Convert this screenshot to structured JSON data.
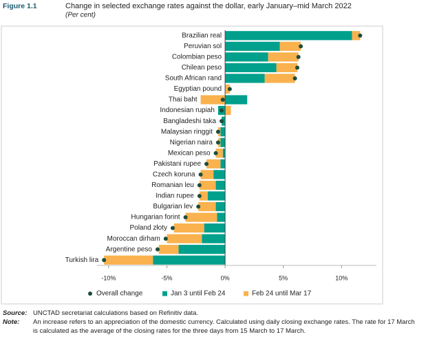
{
  "figure_label": "Figure 1.1",
  "chart_data": {
    "type": "stacked_barh_dot",
    "title": "Change in selected exchange rates against the dollar, early January–mid March 2022",
    "subtitle": "(Per cent)",
    "categories": [
      "Brazilian real",
      "Peruvian sol",
      "Colombian peso",
      "Chilean peso",
      "South African rand",
      "Egyptian pound",
      "Thai baht",
      "Indonesian rupiah",
      "Bangladeshi taka",
      "Malaysian ringgit",
      "Nigerian naira",
      "Mexican peso",
      "Pakistani rupee",
      "Czech koruna",
      "Romanian leu",
      "Indian rupee",
      "Bulgarian lev",
      "Hungarian forint",
      "Poland złoty",
      "Moroccan dirham",
      "Argentine peso",
      "Turkish lira"
    ],
    "series": [
      {
        "name": "Jan 3 until Feb 24",
        "color": "#00a08c",
        "values": [
          10.9,
          4.7,
          3.7,
          4.4,
          3.4,
          0,
          1.9,
          -0.6,
          -0.3,
          -0.4,
          -0.4,
          -0.2,
          -0.4,
          -1.0,
          -0.8,
          -1.5,
          -0.8,
          -0.7,
          -1.8,
          -2.0,
          -4.0,
          -6.2
        ]
      },
      {
        "name": "Feb 24 until Mar 17",
        "color": "#f9b24e",
        "values": [
          0.7,
          1.8,
          2.6,
          1.8,
          2.6,
          0.4,
          -2.1,
          0.5,
          0,
          -0.2,
          -0.2,
          -0.6,
          -1.2,
          -1.1,
          -1.4,
          -0.7,
          -1.5,
          -2.7,
          -2.6,
          -3.0,
          -1.7,
          -4.2
        ]
      }
    ],
    "markers": {
      "name": "Overall change",
      "color": "#1d4d3a",
      "values": [
        11.6,
        6.5,
        6.3,
        6.2,
        6.0,
        0.4,
        -0.2,
        -0.3,
        -0.3,
        -0.6,
        -0.6,
        -0.8,
        -1.6,
        -2.1,
        -2.2,
        -2.2,
        -2.3,
        -3.4,
        -4.5,
        -5.1,
        -5.8,
        -10.4
      ]
    },
    "xlim": [
      -11,
      13
    ],
    "xticks": [
      {
        "value": -10,
        "label": "-10%"
      },
      {
        "value": -5,
        "label": "-5%"
      },
      {
        "value": 0,
        "label": "0%"
      },
      {
        "value": 5,
        "label": "5%"
      },
      {
        "value": 10,
        "label": "10%"
      }
    ]
  },
  "source_label": "Source:",
  "source": "UNCTAD secretariat calculations based on Refinitiv data.",
  "note_label": "Note:",
  "note": "An increase refers to an appreciation of the domestic currency. Calculated using daily closing exchange rates. The rate for 17 March is calculated as the average of the closing rates for the three days from 15 March to 17 March."
}
